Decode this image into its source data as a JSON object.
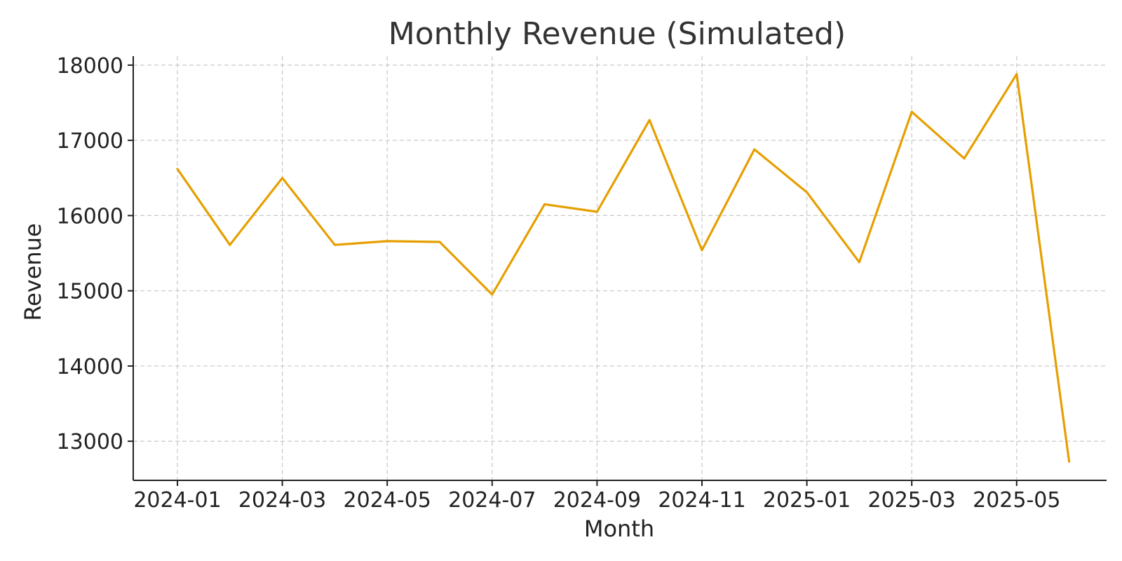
{
  "chart_data": {
    "type": "line",
    "title": "Monthly Revenue (Simulated)",
    "xlabel": "Month",
    "ylabel": "Revenue",
    "x": [
      "2024-01",
      "2024-02",
      "2024-03",
      "2024-04",
      "2024-05",
      "2024-06",
      "2024-07",
      "2024-08",
      "2024-09",
      "2024-10",
      "2024-11",
      "2024-12",
      "2025-01",
      "2025-02",
      "2025-03",
      "2025-04",
      "2025-05",
      "2025-06"
    ],
    "x_ticks": [
      "2024-01",
      "2024-03",
      "2024-05",
      "2024-07",
      "2024-09",
      "2024-11",
      "2025-01",
      "2025-03",
      "2025-05"
    ],
    "series": [
      {
        "values": [
          16620,
          15610,
          16500,
          15610,
          15660,
          15650,
          14950,
          16150,
          16050,
          17270,
          15540,
          16880,
          16310,
          15380,
          17380,
          16760,
          17880,
          12730
        ],
        "color": "#E69F00"
      }
    ],
    "ylim": [
      12480,
      18120
    ],
    "y_ticks": [
      13000,
      14000,
      15000,
      16000,
      17000,
      18000
    ],
    "grid": true,
    "legend": "none"
  }
}
